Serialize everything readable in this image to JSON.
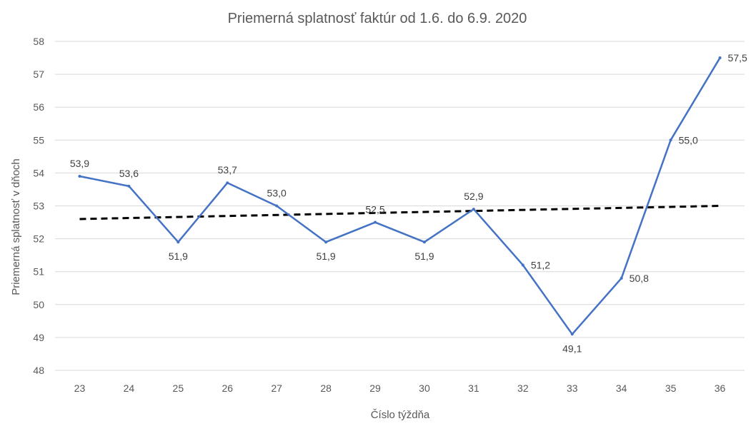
{
  "chart_data": {
    "type": "line",
    "title": "Priemerná splatnosť faktúr od 1.6. do 6.9. 2020",
    "xlabel": "Číslo týždňa",
    "ylabel": "Priemerná splatnosť v dňoch",
    "categories": [
      "23",
      "24",
      "25",
      "26",
      "27",
      "28",
      "29",
      "30",
      "31",
      "32",
      "33",
      "34",
      "35",
      "36"
    ],
    "series": [
      {
        "name": "Priemerná splatnosť",
        "color": "#4472c4",
        "values": [
          53.9,
          53.6,
          51.9,
          53.7,
          53.0,
          51.9,
          52.5,
          51.9,
          52.9,
          51.2,
          49.1,
          50.8,
          55.0,
          57.5
        ],
        "labels": [
          "53,9",
          "53,6",
          "51,9",
          "53,7",
          "53,0",
          "51,9",
          "52,5",
          "51,9",
          "52,9",
          "51,2",
          "49,1",
          "50,8",
          "55,0",
          "57,5"
        ],
        "label_positions": [
          "above",
          "above",
          "below",
          "above",
          "above",
          "below",
          "above",
          "below",
          "above",
          "right",
          "below",
          "right",
          "right",
          "right"
        ]
      }
    ],
    "trendline": {
      "type": "linear",
      "style": "dashed",
      "color": "#000000",
      "start": 52.6,
      "end": 53.0
    },
    "ylim": [
      48,
      58
    ],
    "yticks": [
      "48",
      "49",
      "50",
      "51",
      "52",
      "53",
      "54",
      "55",
      "56",
      "57",
      "58"
    ],
    "grid": true,
    "legend": "none"
  }
}
